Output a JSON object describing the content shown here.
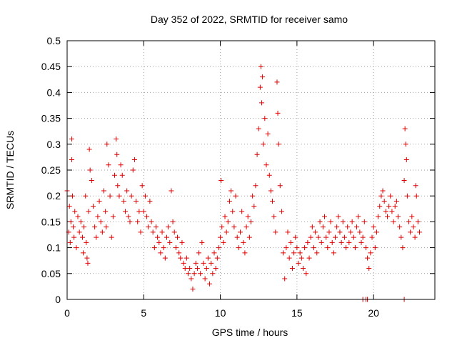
{
  "chart_data": {
    "type": "scatter",
    "title": "Day 352 of 2022, SRMTID for receiver samo",
    "xlabel": "GPS time / hours",
    "ylabel": "SRMTID / TECUs",
    "xlim": [
      0,
      24
    ],
    "ylim": [
      0,
      0.5
    ],
    "xticks": [
      0,
      5,
      10,
      15,
      20
    ],
    "yticks": [
      0,
      0.05,
      0.1,
      0.15,
      0.2,
      0.25,
      0.3,
      0.35,
      0.4,
      0.45,
      0.5
    ],
    "grid": true,
    "marker": "plus",
    "color": "#e00000",
    "series": [
      {
        "name": "SRMTID",
        "points": [
          [
            0.0,
            0.21
          ],
          [
            0.1,
            0.13
          ],
          [
            0.15,
            0.18
          ],
          [
            0.2,
            0.11
          ],
          [
            0.25,
            0.15
          ],
          [
            0.3,
            0.31
          ],
          [
            0.3,
            0.27
          ],
          [
            0.35,
            0.2
          ],
          [
            0.4,
            0.14
          ],
          [
            0.45,
            0.12
          ],
          [
            0.5,
            0.17
          ],
          [
            0.6,
            0.1
          ],
          [
            0.7,
            0.16
          ],
          [
            0.8,
            0.13
          ],
          [
            0.9,
            0.15
          ],
          [
            1.0,
            0.12
          ],
          [
            1.05,
            0.09
          ],
          [
            1.1,
            0.14
          ],
          [
            1.2,
            0.2
          ],
          [
            1.25,
            0.11
          ],
          [
            1.3,
            0.08
          ],
          [
            1.35,
            0.07
          ],
          [
            1.4,
            0.17
          ],
          [
            1.45,
            0.29
          ],
          [
            1.5,
            0.25
          ],
          [
            1.6,
            0.23
          ],
          [
            1.7,
            0.18
          ],
          [
            1.8,
            0.14
          ],
          [
            1.9,
            0.12
          ],
          [
            2.0,
            0.16
          ],
          [
            2.1,
            0.19
          ],
          [
            2.2,
            0.15
          ],
          [
            2.3,
            0.13
          ],
          [
            2.4,
            0.21
          ],
          [
            2.5,
            0.17
          ],
          [
            2.55,
            0.14
          ],
          [
            2.6,
            0.3
          ],
          [
            2.7,
            0.26
          ],
          [
            2.8,
            0.2
          ],
          [
            2.9,
            0.12
          ],
          [
            3.0,
            0.16
          ],
          [
            3.1,
            0.24
          ],
          [
            3.2,
            0.31
          ],
          [
            3.25,
            0.28
          ],
          [
            3.3,
            0.22
          ],
          [
            3.4,
            0.2
          ],
          [
            3.5,
            0.26
          ],
          [
            3.6,
            0.24
          ],
          [
            3.7,
            0.19
          ],
          [
            3.8,
            0.17
          ],
          [
            3.9,
            0.21
          ],
          [
            4.0,
            0.16
          ],
          [
            4.1,
            0.15
          ],
          [
            4.2,
            0.2
          ],
          [
            4.3,
            0.25
          ],
          [
            4.4,
            0.27
          ],
          [
            4.5,
            0.19
          ],
          [
            4.6,
            0.15
          ],
          [
            4.7,
            0.17
          ],
          [
            4.8,
            0.13
          ],
          [
            4.9,
            0.22
          ],
          [
            5.0,
            0.17
          ],
          [
            5.1,
            0.2
          ],
          [
            5.2,
            0.16
          ],
          [
            5.3,
            0.14
          ],
          [
            5.4,
            0.19
          ],
          [
            5.5,
            0.15
          ],
          [
            5.6,
            0.13
          ],
          [
            5.7,
            0.1
          ],
          [
            5.8,
            0.14
          ],
          [
            5.9,
            0.12
          ],
          [
            6.0,
            0.11
          ],
          [
            6.1,
            0.09
          ],
          [
            6.2,
            0.13
          ],
          [
            6.3,
            0.1
          ],
          [
            6.4,
            0.08
          ],
          [
            6.5,
            0.12
          ],
          [
            6.6,
            0.14
          ],
          [
            6.7,
            0.11
          ],
          [
            6.8,
            0.21
          ],
          [
            6.9,
            0.15
          ],
          [
            7.0,
            0.13
          ],
          [
            7.1,
            0.1
          ],
          [
            7.2,
            0.12
          ],
          [
            7.3,
            0.09
          ],
          [
            7.4,
            0.08
          ],
          [
            7.5,
            0.11
          ],
          [
            7.6,
            0.07
          ],
          [
            7.7,
            0.06
          ],
          [
            7.8,
            0.08
          ],
          [
            7.9,
            0.05
          ],
          [
            8.0,
            0.06
          ],
          [
            8.1,
            0.04
          ],
          [
            8.2,
            0.02
          ],
          [
            8.3,
            0.05
          ],
          [
            8.4,
            0.07
          ],
          [
            8.5,
            0.06
          ],
          [
            8.6,
            0.09
          ],
          [
            8.7,
            0.05
          ],
          [
            8.8,
            0.11
          ],
          [
            8.9,
            0.07
          ],
          [
            9.0,
            0.04
          ],
          [
            9.1,
            0.06
          ],
          [
            9.2,
            0.08
          ],
          [
            9.3,
            0.03
          ],
          [
            9.4,
            0.07
          ],
          [
            9.5,
            0.05
          ],
          [
            9.6,
            0.09
          ],
          [
            9.7,
            0.06
          ],
          [
            9.8,
            0.08
          ],
          [
            9.9,
            0.1
          ],
          [
            10.0,
            0.12
          ],
          [
            10.05,
            0.23
          ],
          [
            10.1,
            0.14
          ],
          [
            10.2,
            0.11
          ],
          [
            10.3,
            0.16
          ],
          [
            10.4,
            0.13
          ],
          [
            10.5,
            0.15
          ],
          [
            10.6,
            0.19
          ],
          [
            10.7,
            0.21
          ],
          [
            10.8,
            0.17
          ],
          [
            10.9,
            0.14
          ],
          [
            11.0,
            0.2
          ],
          [
            11.1,
            0.12
          ],
          [
            11.2,
            0.1
          ],
          [
            11.3,
            0.13
          ],
          [
            11.4,
            0.17
          ],
          [
            11.5,
            0.11
          ],
          [
            11.6,
            0.09
          ],
          [
            11.7,
            0.14
          ],
          [
            11.8,
            0.16
          ],
          [
            11.9,
            0.12
          ],
          [
            12.0,
            0.15
          ],
          [
            12.1,
            0.2
          ],
          [
            12.2,
            0.18
          ],
          [
            12.3,
            0.22
          ],
          [
            12.4,
            0.28
          ],
          [
            12.5,
            0.33
          ],
          [
            12.6,
            0.41
          ],
          [
            12.65,
            0.45
          ],
          [
            12.7,
            0.38
          ],
          [
            12.75,
            0.43
          ],
          [
            12.8,
            0.3
          ],
          [
            12.9,
            0.35
          ],
          [
            13.0,
            0.26
          ],
          [
            13.1,
            0.32
          ],
          [
            13.2,
            0.24
          ],
          [
            13.3,
            0.21
          ],
          [
            13.4,
            0.19
          ],
          [
            13.5,
            0.16
          ],
          [
            13.6,
            0.13
          ],
          [
            13.7,
            0.42
          ],
          [
            13.75,
            0.36
          ],
          [
            13.8,
            0.3
          ],
          [
            13.9,
            0.22
          ],
          [
            14.0,
            0.17
          ],
          [
            14.1,
            0.09
          ],
          [
            14.2,
            0.04
          ],
          [
            14.3,
            0.1
          ],
          [
            14.4,
            0.13
          ],
          [
            14.5,
            0.08
          ],
          [
            14.6,
            0.11
          ],
          [
            14.7,
            0.06
          ],
          [
            14.8,
            0.09
          ],
          [
            14.9,
            0.12
          ],
          [
            15.0,
            0.1
          ],
          [
            15.1,
            0.07
          ],
          [
            15.2,
            0.09
          ],
          [
            15.3,
            0.08
          ],
          [
            15.4,
            0.06
          ],
          [
            15.5,
            0.1
          ],
          [
            15.6,
            0.05
          ],
          [
            15.7,
            0.11
          ],
          [
            15.8,
            0.08
          ],
          [
            15.9,
            0.12
          ],
          [
            16.0,
            0.14
          ],
          [
            16.1,
            0.1
          ],
          [
            16.2,
            0.13
          ],
          [
            16.3,
            0.09
          ],
          [
            16.4,
            0.12
          ],
          [
            16.5,
            0.15
          ],
          [
            16.6,
            0.11
          ],
          [
            16.7,
            0.14
          ],
          [
            16.8,
            0.16
          ],
          [
            16.9,
            0.12
          ],
          [
            17.0,
            0.1
          ],
          [
            17.1,
            0.13
          ],
          [
            17.2,
            0.15
          ],
          [
            17.3,
            0.11
          ],
          [
            17.4,
            0.09
          ],
          [
            17.5,
            0.12
          ],
          [
            17.6,
            0.14
          ],
          [
            17.7,
            0.16
          ],
          [
            17.8,
            0.13
          ],
          [
            17.9,
            0.11
          ],
          [
            18.0,
            0.15
          ],
          [
            18.1,
            0.12
          ],
          [
            18.2,
            0.1
          ],
          [
            18.3,
            0.14
          ],
          [
            18.4,
            0.11
          ],
          [
            18.5,
            0.13
          ],
          [
            18.6,
            0.15
          ],
          [
            18.7,
            0.12
          ],
          [
            18.8,
            0.1
          ],
          [
            18.9,
            0.14
          ],
          [
            19.0,
            0.16
          ],
          [
            19.1,
            0.13
          ],
          [
            19.2,
            0.11
          ],
          [
            19.3,
            0.12
          ],
          [
            19.4,
            0.15
          ],
          [
            19.5,
            0.1
          ],
          [
            19.6,
            0.08
          ],
          [
            19.7,
            0.06
          ],
          [
            19.8,
            0.09
          ],
          [
            19.9,
            0.12
          ],
          [
            20.0,
            0.14
          ],
          [
            20.1,
            0.1
          ],
          [
            20.2,
            0.13
          ],
          [
            20.3,
            0.16
          ],
          [
            20.4,
            0.18
          ],
          [
            20.5,
            0.2
          ],
          [
            20.6,
            0.21
          ],
          [
            20.7,
            0.19
          ],
          [
            20.8,
            0.17
          ],
          [
            20.9,
            0.16
          ],
          [
            21.0,
            0.18
          ],
          [
            21.1,
            0.2
          ],
          [
            21.2,
            0.17
          ],
          [
            21.3,
            0.15
          ],
          [
            21.4,
            0.18
          ],
          [
            21.5,
            0.19
          ],
          [
            21.6,
            0.16
          ],
          [
            21.7,
            0.14
          ],
          [
            21.8,
            0.12
          ],
          [
            21.9,
            0.1
          ],
          [
            22.0,
            0.23
          ],
          [
            22.05,
            0.33
          ],
          [
            22.1,
            0.3
          ],
          [
            22.15,
            0.27
          ],
          [
            22.2,
            0.2
          ],
          [
            22.3,
            0.15
          ],
          [
            22.4,
            0.13
          ],
          [
            22.5,
            0.16
          ],
          [
            22.6,
            0.14
          ],
          [
            22.7,
            0.12
          ],
          [
            22.75,
            0.22
          ],
          [
            22.8,
            0.2
          ],
          [
            22.9,
            0.15
          ],
          [
            23.0,
            0.13
          ],
          [
            19.3,
            0.0
          ],
          [
            19.5,
            0.0
          ],
          [
            19.6,
            0.0
          ],
          [
            22.0,
            0.0
          ]
        ]
      }
    ]
  }
}
